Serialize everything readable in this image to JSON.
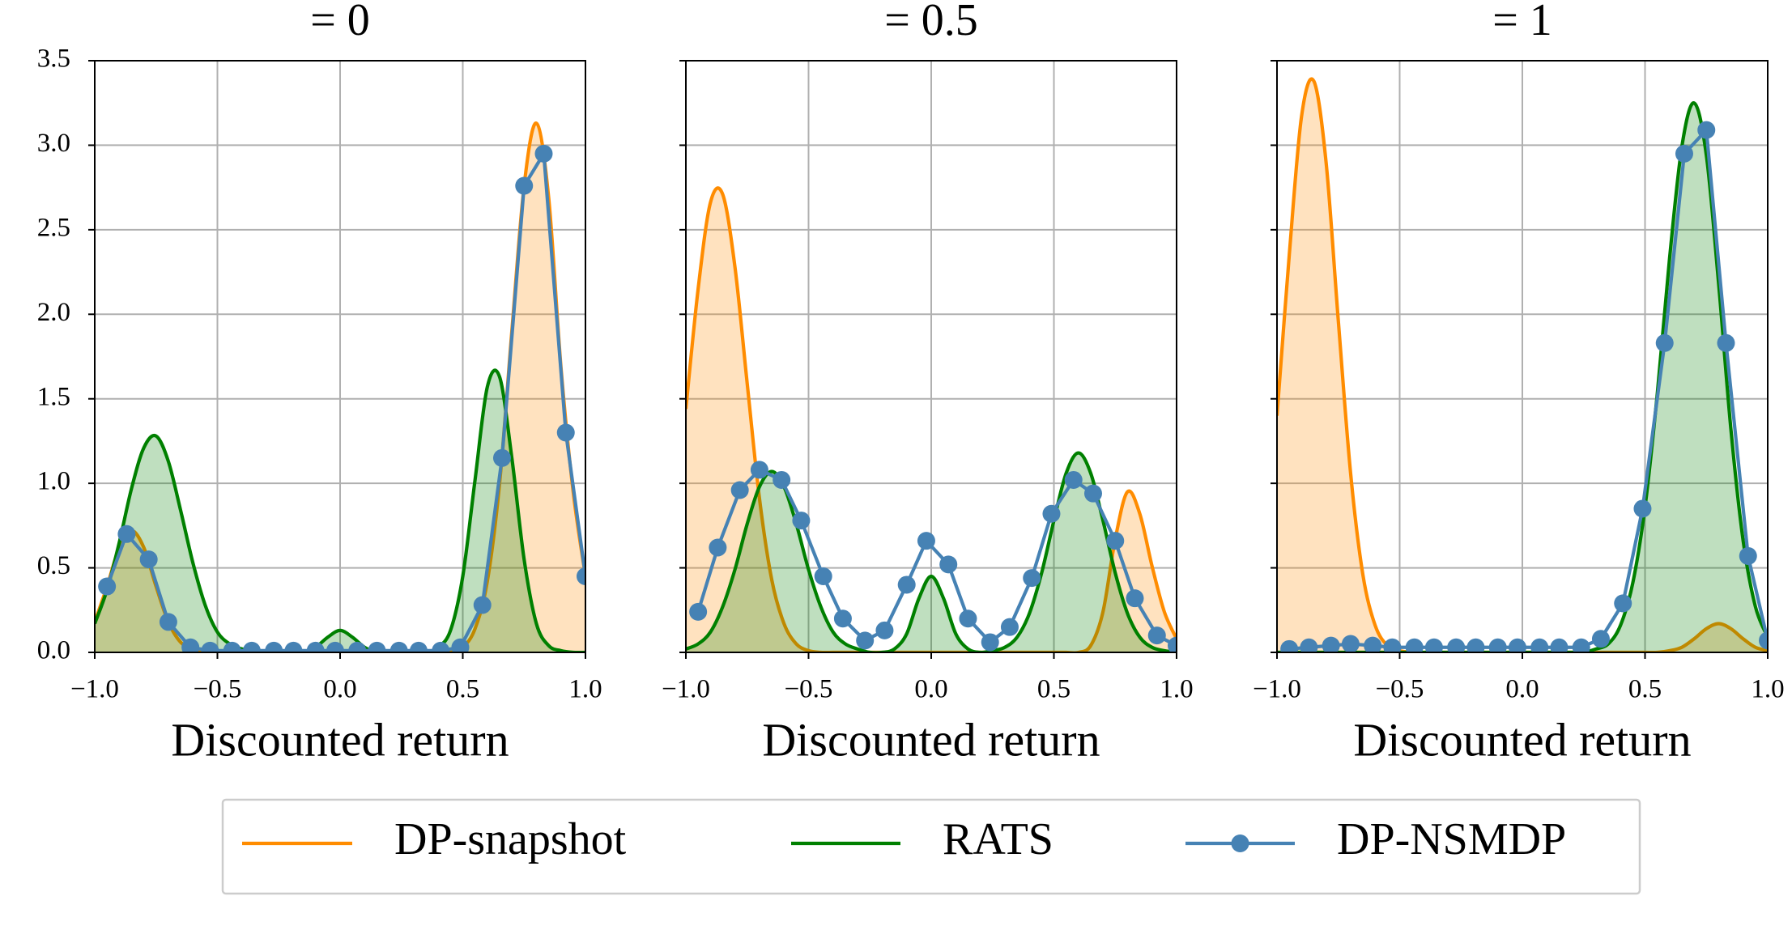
{
  "chart_data": [
    {
      "type": "line",
      "title": "= 0",
      "xlabel": "Discounted return",
      "x": [
        -1,
        -0.95,
        -0.9,
        -0.85,
        -0.8,
        -0.75,
        -0.7,
        -0.65,
        -0.6,
        -0.55,
        -0.5,
        -0.45,
        -0.4,
        -0.35,
        -0.3,
        -0.25,
        -0.2,
        -0.15,
        -0.1,
        -0.05,
        0,
        0.05,
        0.1,
        0.15,
        0.2,
        0.25,
        0.3,
        0.35,
        0.4,
        0.45,
        0.5,
        0.55,
        0.6,
        0.65,
        0.7,
        0.75,
        0.8,
        0.85,
        0.9,
        0.95,
        1
      ],
      "xlim": [
        -1,
        1
      ],
      "ylim": [
        0,
        3.5
      ],
      "xticks": [
        {
          "value": -1,
          "label": "−1.0"
        },
        {
          "value": -0.5,
          "label": "−0.5"
        },
        {
          "value": 0,
          "label": "0.0"
        },
        {
          "value": 0.5,
          "label": "0.5"
        },
        {
          "value": 1,
          "label": "1.0"
        }
      ],
      "yticks": [
        {
          "value": 0,
          "label": "0.0"
        },
        0.5,
        {
          "value": 1,
          "label": "1.0"
        },
        1.5,
        {
          "value": 2,
          "label": "2.0"
        },
        2.5,
        {
          "value": 3,
          "label": "3.0"
        },
        3.5
      ],
      "show_ytick_labels": true,
      "grid": true,
      "series": [
        {
          "name": "DP-snapshot",
          "color": "#ff8c00",
          "fill": true,
          "values": [
            0.18,
            0.39,
            0.62,
            0.72,
            0.62,
            0.39,
            0.18,
            0.06,
            0.02,
            0,
            0,
            0,
            0,
            0,
            0,
            0,
            0,
            0,
            0,
            0,
            0,
            0,
            0,
            0,
            0,
            0,
            0,
            0,
            0,
            0,
            0.03,
            0.14,
            0.42,
            1.0,
            1.9,
            2.76,
            3.13,
            2.69,
            1.69,
            0.95,
            0.45
          ]
        },
        {
          "name": "RATS",
          "color": "#008000",
          "fill": true,
          "values": [
            0.17,
            0.37,
            0.65,
            0.97,
            1.21,
            1.28,
            1.13,
            0.84,
            0.53,
            0.28,
            0.12,
            0.05,
            0.02,
            0.01,
            0,
            0,
            0,
            0,
            0.03,
            0.09,
            0.13,
            0.09,
            0.03,
            0,
            0,
            0,
            0,
            0,
            0.03,
            0.13,
            0.45,
            1.02,
            1.57,
            1.63,
            1.15,
            0.55,
            0.17,
            0.04,
            0.01,
            0,
            0
          ]
        },
        {
          "name": "DP-NSMDP",
          "color": "#4682b4",
          "marker": "o",
          "x": [
            -0.95,
            -0.87,
            -0.78,
            -0.7,
            -0.61,
            -0.53,
            -0.44,
            -0.36,
            -0.27,
            -0.19,
            -0.1,
            -0.02,
            0.07,
            0.15,
            0.24,
            0.32,
            0.41,
            0.49,
            0.58,
            0.66,
            0.75,
            0.83,
            0.92,
            1.0
          ],
          "values": [
            0.39,
            0.7,
            0.55,
            0.18,
            0.03,
            0.01,
            0.01,
            0.01,
            0.01,
            0.01,
            0.01,
            0.01,
            0.01,
            0.01,
            0.01,
            0.01,
            0.01,
            0.03,
            0.28,
            1.15,
            2.76,
            2.95,
            1.3,
            0.45
          ]
        }
      ]
    },
    {
      "type": "line",
      "title": "= 0.5",
      "xlabel": "Discounted return",
      "x": [
        -1,
        -0.95,
        -0.9,
        -0.85,
        -0.8,
        -0.75,
        -0.7,
        -0.65,
        -0.6,
        -0.55,
        -0.5,
        -0.45,
        -0.4,
        -0.35,
        -0.3,
        -0.25,
        -0.2,
        -0.15,
        -0.1,
        -0.05,
        0,
        0.05,
        0.1,
        0.15,
        0.2,
        0.25,
        0.3,
        0.35,
        0.4,
        0.45,
        0.5,
        0.55,
        0.6,
        0.65,
        0.7,
        0.75,
        0.8,
        0.85,
        0.9,
        0.95,
        1
      ],
      "xlim": [
        -1,
        1
      ],
      "ylim": [
        0,
        3.5
      ],
      "xticks": [
        {
          "value": -1,
          "label": "−1.0"
        },
        {
          "value": -0.5,
          "label": "−0.5"
        },
        {
          "value": 0,
          "label": "0.0"
        },
        {
          "value": 0.5,
          "label": "0.5"
        },
        {
          "value": 1,
          "label": "1.0"
        }
      ],
      "yticks": [
        0,
        0.5,
        1,
        1.5,
        2,
        2.5,
        3,
        3.5
      ],
      "show_ytick_labels": false,
      "grid": true,
      "series": [
        {
          "name": "DP-snapshot",
          "color": "#ff8c00",
          "fill": true,
          "values": [
            1.44,
            2.15,
            2.66,
            2.71,
            2.28,
            1.59,
            0.91,
            0.43,
            0.17,
            0.05,
            0.01,
            0,
            0,
            0,
            0,
            0,
            0,
            0,
            0,
            0,
            0,
            0,
            0,
            0,
            0,
            0,
            0,
            0,
            0,
            0,
            0,
            0,
            0,
            0.04,
            0.24,
            0.67,
            0.95,
            0.82,
            0.51,
            0.24,
            0.08
          ]
        },
        {
          "name": "RATS",
          "color": "#008000",
          "fill": true,
          "values": [
            0.02,
            0.05,
            0.12,
            0.27,
            0.49,
            0.76,
            0.98,
            1.07,
            0.98,
            0.76,
            0.49,
            0.27,
            0.12,
            0.05,
            0.02,
            0,
            0,
            0.02,
            0.11,
            0.32,
            0.45,
            0.32,
            0.11,
            0.02,
            0,
            0.01,
            0.03,
            0.09,
            0.23,
            0.47,
            0.78,
            1.06,
            1.18,
            1.06,
            0.78,
            0.47,
            0.23,
            0.09,
            0.03,
            0.01,
            0
          ]
        },
        {
          "name": "DP-NSMDP",
          "color": "#4682b4",
          "marker": "o",
          "x": [
            -0.95,
            -0.87,
            -0.78,
            -0.7,
            -0.61,
            -0.53,
            -0.44,
            -0.36,
            -0.27,
            -0.19,
            -0.1,
            -0.02,
            0.07,
            0.15,
            0.24,
            0.32,
            0.41,
            0.49,
            0.58,
            0.66,
            0.75,
            0.83,
            0.92,
            1.0
          ],
          "values": [
            0.24,
            0.62,
            0.96,
            1.08,
            1.02,
            0.78,
            0.45,
            0.2,
            0.07,
            0.13,
            0.4,
            0.66,
            0.52,
            0.2,
            0.06,
            0.15,
            0.44,
            0.82,
            1.02,
            0.94,
            0.66,
            0.32,
            0.1,
            0.04
          ]
        }
      ]
    },
    {
      "type": "line",
      "title": "= 1",
      "xlabel": "Discounted return",
      "x": [
        -1,
        -0.95,
        -0.9,
        -0.85,
        -0.8,
        -0.75,
        -0.7,
        -0.65,
        -0.6,
        -0.55,
        -0.5,
        -0.45,
        -0.4,
        -0.35,
        -0.3,
        -0.25,
        -0.2,
        -0.15,
        -0.1,
        -0.05,
        0,
        0.05,
        0.1,
        0.15,
        0.2,
        0.25,
        0.3,
        0.35,
        0.4,
        0.45,
        0.5,
        0.55,
        0.6,
        0.65,
        0.7,
        0.75,
        0.8,
        0.85,
        0.9,
        0.95,
        1
      ],
      "xlim": [
        -1,
        1
      ],
      "ylim": [
        0,
        3.5
      ],
      "xticks": [
        {
          "value": -1,
          "label": "−1.0"
        },
        {
          "value": -0.5,
          "label": "−0.5"
        },
        {
          "value": 0,
          "label": "0.0"
        },
        {
          "value": 0.5,
          "label": "0.5"
        },
        {
          "value": 1,
          "label": "1.0"
        }
      ],
      "yticks": [
        0,
        0.5,
        1,
        1.5,
        2,
        2.5,
        3,
        3.5
      ],
      "show_ytick_labels": false,
      "grid": true,
      "series": [
        {
          "name": "DP-snapshot",
          "color": "#ff8c00",
          "fill": true,
          "values": [
            1.4,
            2.35,
            3.17,
            3.38,
            2.9,
            1.96,
            1.06,
            0.46,
            0.16,
            0.04,
            0.01,
            0,
            0,
            0,
            0,
            0,
            0,
            0,
            0,
            0,
            0,
            0,
            0,
            0,
            0,
            0,
            0,
            0,
            0,
            0,
            0,
            0,
            0.01,
            0.03,
            0.08,
            0.14,
            0.17,
            0.14,
            0.08,
            0.03,
            0.01
          ]
        },
        {
          "name": "RATS",
          "color": "#008000",
          "fill": true,
          "values": [
            0,
            0,
            0,
            0,
            0,
            0,
            0,
            0,
            0,
            0,
            0,
            0,
            0,
            0,
            0,
            0,
            0,
            0,
            0,
            0,
            0,
            0,
            0,
            0,
            0,
            0,
            0.02,
            0.05,
            0.16,
            0.41,
            0.86,
            1.53,
            2.33,
            2.99,
            3.25,
            2.94,
            2.18,
            1.32,
            0.66,
            0.27,
            0.09
          ]
        },
        {
          "name": "DP-NSMDP",
          "color": "#4682b4",
          "marker": "o",
          "x": [
            -0.95,
            -0.87,
            -0.78,
            -0.7,
            -0.61,
            -0.53,
            -0.44,
            -0.36,
            -0.27,
            -0.19,
            -0.1,
            -0.02,
            0.07,
            0.15,
            0.24,
            0.32,
            0.41,
            0.49,
            0.58,
            0.66,
            0.75,
            0.83,
            0.92,
            1.0
          ],
          "values": [
            0.02,
            0.03,
            0.04,
            0.05,
            0.04,
            0.03,
            0.03,
            0.03,
            0.03,
            0.03,
            0.03,
            0.03,
            0.03,
            0.03,
            0.03,
            0.08,
            0.29,
            0.85,
            1.83,
            2.95,
            3.09,
            1.83,
            0.57,
            0.07
          ]
        }
      ]
    }
  ]
}
